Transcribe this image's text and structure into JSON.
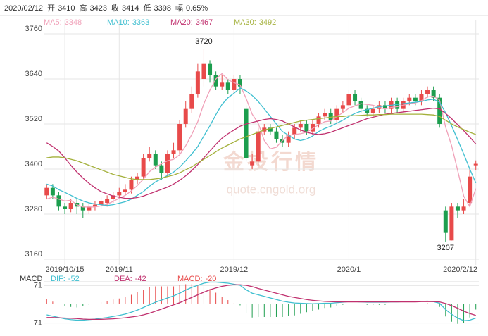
{
  "chart_data": {
    "type": "candlestick",
    "header": {
      "date": "2020/02/12",
      "items": [
        {
          "label": "开",
          "value": 3410
        },
        {
          "label": "高",
          "value": 3423
        },
        {
          "label": "收",
          "value": 3414
        },
        {
          "label": "低",
          "value": 3398
        },
        {
          "label": "幅",
          "value": "0.65%"
        }
      ]
    },
    "watermark": [
      "金投行情",
      "quote.cngold.org"
    ],
    "categories": [
      null,
      null,
      null,
      "2019/10/15",
      null,
      null,
      null,
      null,
      null,
      null,
      null,
      null,
      "2019/11",
      null,
      null,
      null,
      null,
      null,
      null,
      null,
      null,
      null,
      null,
      null,
      null,
      null,
      null,
      null,
      null,
      null,
      null,
      "2019/12",
      null,
      null,
      null,
      null,
      null,
      null,
      null,
      null,
      null,
      null,
      null,
      null,
      null,
      null,
      null,
      null,
      null,
      null,
      "2020/1",
      null,
      null,
      null,
      null,
      null,
      null,
      null,
      null,
      null,
      null,
      null,
      null,
      null,
      null,
      null,
      null,
      null,
      null,
      null,
      null,
      "2020/2/12"
    ],
    "candles": {
      "open": [
        3330,
        3350,
        3330,
        3300,
        3295,
        3310,
        3300,
        3290,
        3300,
        3305,
        3310,
        3320,
        3330,
        3340,
        3345,
        3370,
        3380,
        3430,
        3440,
        3410,
        3390,
        3440,
        3450,
        3520,
        3560,
        3600,
        3640,
        3680,
        3650,
        3620,
        3630,
        3610,
        3640,
        3560,
        3410,
        3420,
        3500,
        3510,
        3500,
        3480,
        3470,
        3490,
        3510,
        3520,
        3500,
        3520,
        3540,
        3550,
        3530,
        3560,
        3570,
        3600,
        3580,
        3560,
        3550,
        3560,
        3570,
        3560,
        3580,
        3560,
        3580,
        3590,
        3580,
        3600,
        3610,
        3590,
        3290,
        3210,
        3300,
        3290,
        3310,
        3410
      ],
      "high": [
        3360,
        3360,
        3340,
        3310,
        3320,
        3320,
        3310,
        3310,
        3315,
        3325,
        3330,
        3340,
        3350,
        3360,
        3380,
        3390,
        3440,
        3460,
        3450,
        3420,
        3450,
        3470,
        3530,
        3580,
        3620,
        3680,
        3720,
        3690,
        3660,
        3650,
        3640,
        3650,
        3650,
        3570,
        3440,
        3510,
        3520,
        3520,
        3510,
        3490,
        3500,
        3520,
        3530,
        3530,
        3530,
        3550,
        3560,
        3560,
        3570,
        3580,
        3610,
        3610,
        3590,
        3570,
        3570,
        3580,
        3580,
        3590,
        3590,
        3590,
        3600,
        3600,
        3610,
        3620,
        3620,
        3600,
        3300,
        3310,
        3310,
        3320,
        3400,
        3423
      ],
      "low": [
        3320,
        3320,
        3290,
        3280,
        3285,
        3280,
        3270,
        3280,
        3290,
        3295,
        3300,
        3310,
        3320,
        3330,
        3335,
        3360,
        3370,
        3420,
        3400,
        3370,
        3380,
        3430,
        3440,
        3510,
        3550,
        3590,
        3620,
        3630,
        3610,
        3610,
        3600,
        3600,
        3600,
        3420,
        3400,
        3410,
        3490,
        3490,
        3470,
        3460,
        3460,
        3480,
        3500,
        3490,
        3490,
        3510,
        3530,
        3520,
        3520,
        3550,
        3560,
        3570,
        3550,
        3540,
        3540,
        3550,
        3550,
        3550,
        3550,
        3550,
        3570,
        3570,
        3570,
        3590,
        3580,
        3510,
        3207,
        3210,
        3270,
        3280,
        3300,
        3398
      ],
      "close": [
        3350,
        3330,
        3300,
        3295,
        3310,
        3300,
        3290,
        3300,
        3305,
        3315,
        3320,
        3330,
        3340,
        3345,
        3370,
        3380,
        3430,
        3440,
        3410,
        3390,
        3440,
        3450,
        3520,
        3560,
        3600,
        3660,
        3680,
        3650,
        3620,
        3630,
        3610,
        3640,
        3620,
        3430,
        3420,
        3500,
        3510,
        3500,
        3480,
        3470,
        3490,
        3510,
        3520,
        3500,
        3520,
        3540,
        3550,
        3530,
        3560,
        3570,
        3600,
        3580,
        3560,
        3550,
        3560,
        3570,
        3560,
        3580,
        3560,
        3580,
        3590,
        3580,
        3600,
        3610,
        3590,
        3520,
        3230,
        3300,
        3290,
        3300,
        3380,
        3414
      ]
    },
    "up_color": "#e84a4a",
    "down_color": "#1c9e4e",
    "max_label": 3720,
    "min_label": 3207,
    "series": [
      {
        "name": "MA5",
        "color": "#f0a0b8",
        "values": [
          3320,
          3325,
          3320,
          3315,
          3317,
          3305,
          3299,
          3299,
          3299,
          3302,
          3306,
          3314,
          3322,
          3330,
          3342,
          3356,
          3373,
          3393,
          3405,
          3414,
          3422,
          3426,
          3438,
          3462,
          3492,
          3526,
          3574,
          3610,
          3640,
          3654,
          3638,
          3630,
          3624,
          3588,
          3546,
          3522,
          3476,
          3454,
          3458,
          3476,
          3490,
          3492,
          3494,
          3498,
          3508,
          3518,
          3526,
          3528,
          3540,
          3550,
          3562,
          3568,
          3574,
          3572,
          3570,
          3564,
          3560,
          3564,
          3566,
          3570,
          3574,
          3576,
          3582,
          3592,
          3594,
          3584,
          3512,
          3462,
          3396,
          3328,
          3300,
          3348
        ]
      },
      {
        "name": "MA10",
        "color": "#3fbfd0",
        "values": [
          3360,
          3355,
          3345,
          3338,
          3330,
          3322,
          3315,
          3310,
          3307,
          3305,
          3303,
          3305,
          3309,
          3313,
          3320,
          3330,
          3340,
          3354,
          3366,
          3374,
          3383,
          3392,
          3405,
          3422,
          3440,
          3460,
          3488,
          3515,
          3545,
          3572,
          3590,
          3602,
          3616,
          3608,
          3596,
          3580,
          3560,
          3540,
          3520,
          3500,
          3490,
          3480,
          3476,
          3480,
          3488,
          3500,
          3508,
          3514,
          3522,
          3530,
          3540,
          3548,
          3554,
          3558,
          3562,
          3566,
          3568,
          3570,
          3572,
          3574,
          3576,
          3578,
          3580,
          3584,
          3586,
          3578,
          3550,
          3515,
          3478,
          3440,
          3400,
          3363
        ]
      },
      {
        "name": "MA20",
        "color": "#c0306e",
        "values": [
          3470,
          3460,
          3448,
          3430,
          3410,
          3392,
          3376,
          3362,
          3350,
          3340,
          3334,
          3328,
          3325,
          3322,
          3322,
          3324,
          3328,
          3334,
          3340,
          3346,
          3352,
          3360,
          3370,
          3382,
          3396,
          3412,
          3430,
          3448,
          3466,
          3482,
          3494,
          3504,
          3514,
          3520,
          3524,
          3528,
          3532,
          3534,
          3532,
          3528,
          3520,
          3512,
          3504,
          3498,
          3494,
          3492,
          3494,
          3498,
          3504,
          3510,
          3516,
          3522,
          3528,
          3534,
          3538,
          3542,
          3546,
          3548,
          3550,
          3552,
          3554,
          3556,
          3558,
          3560,
          3562,
          3560,
          3548,
          3534,
          3518,
          3502,
          3485,
          3467
        ]
      },
      {
        "name": "MA30",
        "color": "#a3b03a",
        "values": [
          3430,
          3432,
          3432,
          3430,
          3426,
          3422,
          3416,
          3410,
          3404,
          3398,
          3392,
          3386,
          3382,
          3378,
          3374,
          3372,
          3372,
          3372,
          3374,
          3376,
          3380,
          3384,
          3390,
          3398,
          3406,
          3416,
          3426,
          3436,
          3446,
          3456,
          3464,
          3472,
          3480,
          3486,
          3492,
          3498,
          3504,
          3508,
          3512,
          3516,
          3520,
          3524,
          3528,
          3530,
          3532,
          3534,
          3536,
          3538,
          3540,
          3540,
          3542,
          3542,
          3543,
          3544,
          3544,
          3545,
          3545,
          3546,
          3546,
          3546,
          3546,
          3546,
          3546,
          3545,
          3544,
          3540,
          3530,
          3520,
          3512,
          3505,
          3498,
          3492
        ]
      }
    ],
    "ylim": [
      3160,
      3760
    ],
    "yticks": [
      3160,
      3280,
      3400,
      3520,
      3640,
      3760
    ],
    "grid": true,
    "macd": {
      "title": "MACD",
      "ylim": [
        -80,
        80
      ],
      "yticks": [
        71,
        -71
      ],
      "dif": {
        "name": "DIF",
        "color": "#3fbfd0",
        "values": [
          -40,
          -45,
          -50,
          -55,
          -58,
          -60,
          -60,
          -58,
          -56,
          -53,
          -50,
          -46,
          -42,
          -37,
          -30,
          -22,
          -12,
          -2,
          8,
          16,
          24,
          32,
          42,
          54,
          64,
          72,
          80,
          84,
          84,
          82,
          80,
          76,
          72,
          55,
          42,
          36,
          30,
          24,
          18,
          12,
          8,
          5,
          4,
          3,
          2,
          3,
          4,
          4,
          6,
          8,
          10,
          10,
          9,
          8,
          8,
          8,
          8,
          9,
          9,
          10,
          10,
          10,
          11,
          12,
          10,
          4,
          -20,
          -38,
          -52,
          -62,
          -60,
          -52
        ]
      },
      "dea": {
        "name": "DEA",
        "color": "#c0306e",
        "values": [
          -50,
          -50,
          -51,
          -52,
          -53,
          -54,
          -56,
          -57,
          -57,
          -57,
          -56,
          -55,
          -53,
          -51,
          -48,
          -45,
          -40,
          -34,
          -26,
          -18,
          -10,
          -2,
          6,
          16,
          26,
          36,
          46,
          55,
          62,
          68,
          72,
          74,
          74,
          72,
          67,
          60,
          54,
          48,
          42,
          36,
          30,
          26,
          22,
          18,
          15,
          13,
          11,
          10,
          9,
          9,
          9,
          9,
          9,
          9,
          9,
          9,
          9,
          9,
          9,
          9,
          9,
          9,
          10,
          10,
          10,
          9,
          3,
          -5,
          -15,
          -26,
          -35,
          -42
        ]
      },
      "hist": {
        "name": "MACD",
        "values": [
          20,
          10,
          2,
          -6,
          -10,
          -12,
          -8,
          -2,
          2,
          8,
          12,
          18,
          22,
          28,
          36,
          46,
          56,
          64,
          68,
          68,
          68,
          68,
          72,
          76,
          76,
          72,
          68,
          58,
          44,
          28,
          16,
          4,
          -4,
          -34,
          -50,
          -48,
          -48,
          -48,
          -48,
          -48,
          -44,
          -42,
          -36,
          -30,
          -26,
          -20,
          -14,
          -12,
          -6,
          -2,
          2,
          2,
          0,
          -2,
          -2,
          -2,
          -2,
          0,
          0,
          2,
          2,
          2,
          2,
          4,
          0,
          -10,
          -46,
          -66,
          -74,
          -72,
          -50,
          -20
        ]
      }
    }
  }
}
